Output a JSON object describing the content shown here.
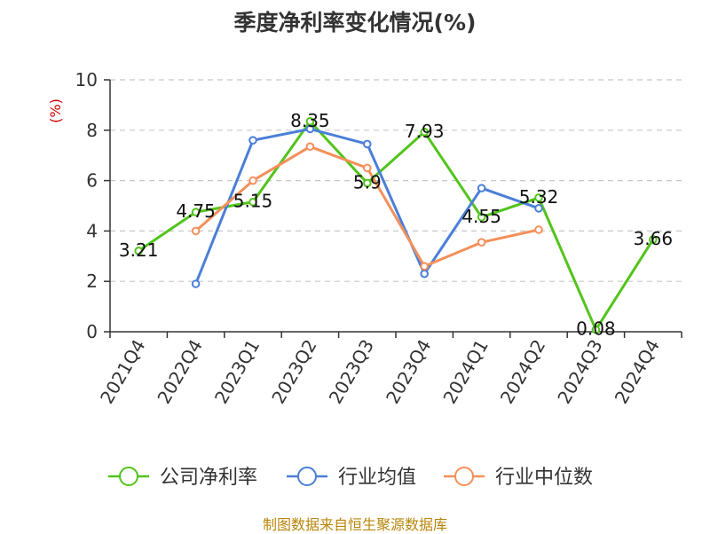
{
  "header": {
    "title": "季度净利率变化情况(%)"
  },
  "footer": {
    "source": "制图数据来自恒生聚源数据库"
  },
  "chart_data": {
    "type": "line",
    "title": "季度净利率变化情况(%)",
    "ylabel": "(%)",
    "xlabel": "",
    "ylim": [
      0,
      10
    ],
    "yticks": [
      0,
      2,
      4,
      6,
      8,
      10
    ],
    "categories": [
      "2021Q4",
      "2022Q4",
      "2023Q1",
      "2023Q2",
      "2023Q3",
      "2023Q4",
      "2024Q1",
      "2024Q2",
      "2024Q3",
      "2024Q4"
    ],
    "grid": true,
    "legend_position": "bottom",
    "series": [
      {
        "name": "公司净利率",
        "color": "#52c41a",
        "values": [
          3.21,
          4.75,
          5.15,
          8.35,
          5.9,
          7.93,
          4.55,
          5.32,
          0.08,
          3.66
        ],
        "labels": [
          "3.21",
          "4.75",
          "5.15",
          "8.35",
          "5.9",
          "7.93",
          "4.55",
          "5.32",
          "0.08",
          "3.66"
        ]
      },
      {
        "name": "行业均值",
        "color": "#4a7fd8",
        "values": [
          null,
          1.9,
          7.6,
          8.05,
          7.45,
          2.3,
          5.7,
          4.9,
          null,
          null
        ]
      },
      {
        "name": "行业中位数",
        "color": "#f4905a",
        "values": [
          null,
          4.0,
          6.0,
          7.35,
          6.5,
          2.6,
          3.55,
          4.05,
          null,
          null
        ]
      }
    ]
  }
}
